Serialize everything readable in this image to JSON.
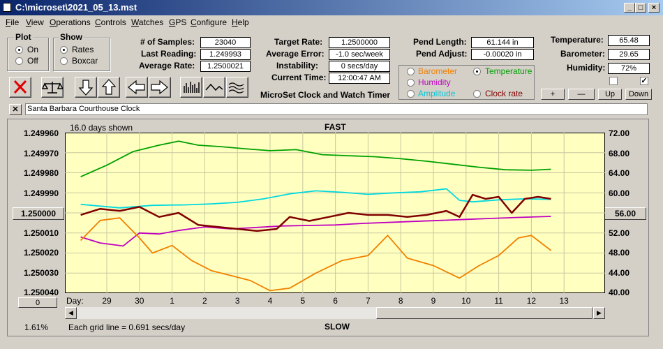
{
  "window": {
    "title": "C:\\microset\\2021_05_13.mst"
  },
  "menu": [
    {
      "label": "File",
      "ul": "F",
      "rest": "ile"
    },
    {
      "label": "View",
      "ul": "V",
      "rest": "iew"
    },
    {
      "label": "Operations",
      "ul": "O",
      "rest": "perations"
    },
    {
      "label": "Controls",
      "ul": "C",
      "rest": "ontrols"
    },
    {
      "label": "Watches",
      "ul": "W",
      "rest": "atches"
    },
    {
      "label": "GPS",
      "ul": "G",
      "rest": "PS"
    },
    {
      "label": "Configure",
      "ul": "C",
      "rest": "onfigure"
    },
    {
      "label": "Help",
      "ul": "H",
      "rest": "elp"
    }
  ],
  "plot_group": {
    "title": "Plot",
    "on": "On",
    "off": "Off",
    "selected": "On"
  },
  "show_group": {
    "title": "Show",
    "rates": "Rates",
    "boxcar": "Boxcar",
    "selected": "Rates"
  },
  "stats": {
    "samples_label": "# of Samples:",
    "samples": "23040",
    "last_label": "Last Reading:",
    "last": "1.249993",
    "avg_rate_label": "Average Rate:",
    "avg_rate": "1.2500021",
    "target_label": "Target Rate:",
    "target": "1.2500000",
    "avg_err_label": "Average Error:",
    "avg_err": "-1.0 sec/week",
    "instab_label": "Instability:",
    "instab": "0 secs/day",
    "time_label": "Current Time:",
    "time": "12:00:47 AM",
    "pend_len_label": "Pend Length:",
    "pend_len": "61.144 in",
    "pend_adj_label": "Pend Adjust:",
    "pend_adj": "-0.00020 in",
    "temp_label": "Temperature:",
    "temp": "65.48",
    "baro_label": "Barometer:",
    "baro": "29.65",
    "hum_label": "Humidity:",
    "hum": "72%"
  },
  "app_caption": "MicroSet Clock and Watch Timer",
  "overlay_options": [
    {
      "label": "Barometer",
      "color": "#f08000",
      "selected": false
    },
    {
      "label": "Temperature",
      "color": "#00a000",
      "selected": true
    },
    {
      "label": "Humidity",
      "color": "#c000c0",
      "selected": false
    },
    {
      "label": "Amplitude",
      "color": "#00c8d8",
      "selected": false
    },
    {
      "label": "Clock rate",
      "color": "#800000",
      "selected": false
    }
  ],
  "scale_buttons": {
    "plus": "+",
    "minus": "—",
    "up": "Up",
    "down": "Down"
  },
  "checkbox_right_checked": true,
  "clock_name": "Santa Barbara Courthouse Clock",
  "close_x": "✕",
  "graph": {
    "days_shown": "16.0 days shown",
    "fast": "FAST",
    "slow": "SLOW",
    "left_ticks": [
      "1.249960",
      "1.249970",
      "1.249980",
      "1.249990",
      "1.250000",
      "1.250010",
      "1.250020",
      "1.250030",
      "1.250040"
    ],
    "center_value_button": "1.250000",
    "right_ticks": [
      "72.00",
      "68.00",
      "64.00",
      "60.00",
      "56.00",
      "52.00",
      "48.00",
      "44.00",
      "40.00"
    ],
    "right_center_button": "56.00",
    "day_label": "Day:",
    "days": [
      "29",
      "30",
      "1",
      "2",
      "3",
      "4",
      "5",
      "6",
      "7",
      "8",
      "9",
      "10",
      "11",
      "12",
      "13"
    ],
    "zero_button": "0",
    "percent": "1.61%",
    "grid_note": "Each grid line = 0.691 secs/day"
  },
  "chart_data": {
    "type": "line",
    "x_unit": "day",
    "x_labels": [
      "29",
      "30",
      "1",
      "2",
      "3",
      "4",
      "5",
      "6",
      "7",
      "8",
      "9",
      "10",
      "11",
      "12",
      "13"
    ],
    "left_axis": {
      "ticks": [
        1.24996,
        1.24997,
        1.24998,
        1.24999,
        1.25,
        1.25001,
        1.25002,
        1.25003,
        1.25004
      ],
      "inverted": true
    },
    "right_axis": {
      "ticks": [
        72,
        68,
        64,
        60,
        56,
        52,
        48,
        44,
        40
      ]
    },
    "series": [
      {
        "name": "Temperature",
        "color": "#00a000",
        "axis": "right",
        "x": [
          27.2,
          28,
          28.8,
          29.6,
          30.2,
          30.8,
          31.5,
          32.2,
          33,
          33.8,
          34.6,
          35.4,
          36.2,
          37,
          37.8,
          38.6,
          39.4,
          40.2,
          41,
          41.6
        ],
        "y": [
          63.2,
          65.5,
          68.2,
          69.5,
          70.3,
          69.5,
          69.2,
          68.8,
          68.4,
          68.6,
          67.6,
          67.4,
          67.2,
          66.8,
          66.3,
          65.7,
          65.1,
          64.6,
          64.5,
          64.7
        ]
      },
      {
        "name": "Amplitude",
        "color": "#00d8e0",
        "axis": "right",
        "x": [
          27.2,
          28.4,
          29.4,
          30.4,
          31.2,
          32,
          32.8,
          33.6,
          34.4,
          35.2,
          36,
          36.8,
          37.6,
          38.4,
          38.8,
          39.2,
          40,
          40.8,
          41.6
        ],
        "y": [
          57.7,
          57.0,
          57.5,
          57.6,
          57.8,
          58.1,
          58.8,
          59.8,
          60.4,
          60.1,
          59.7,
          60.0,
          60.2,
          60.8,
          58.5,
          58.2,
          58.6,
          58.8,
          58.7
        ]
      },
      {
        "name": "Humidity",
        "color": "#c000c0",
        "axis": "right",
        "x": [
          27.2,
          27.8,
          28.5,
          29,
          29.6,
          30.2,
          31,
          31.8,
          32.6,
          33.4,
          34.2,
          35,
          35.8,
          36.6,
          37.4,
          38.2,
          39,
          39.8,
          40.6,
          41.6
        ],
        "y": [
          51.2,
          50.0,
          49.4,
          52.0,
          51.8,
          52.5,
          53.2,
          52.8,
          53.1,
          53.4,
          53.5,
          53.6,
          53.9,
          54.1,
          54.3,
          54.5,
          54.7,
          54.9,
          55.1,
          55.3
        ]
      },
      {
        "name": "Barometer",
        "color": "#f08000",
        "axis": "right",
        "x": [
          27.2,
          27.8,
          28.4,
          29,
          29.4,
          30,
          30.6,
          31.2,
          31.8,
          32.4,
          33,
          33.6,
          34.4,
          35.2,
          36,
          36.6,
          37.2,
          38,
          38.8,
          39.4,
          40,
          40.6,
          41,
          41.6
        ],
        "y": [
          50.5,
          54.5,
          55.0,
          51.0,
          48.0,
          49.5,
          46.5,
          44.5,
          43.5,
          42.5,
          40.5,
          41.0,
          44.0,
          46.5,
          47.5,
          51.5,
          47.0,
          45.5,
          43.0,
          45.5,
          47.5,
          51.0,
          51.5,
          48.5
        ]
      },
      {
        "name": "Clock rate",
        "color": "#800000",
        "axis": "left",
        "x": [
          27.2,
          27.8,
          28.4,
          29,
          29.6,
          30.2,
          30.8,
          31.4,
          32,
          32.6,
          33.2,
          33.6,
          34.2,
          34.8,
          35.4,
          36,
          36.6,
          37.2,
          37.8,
          38.4,
          38.8,
          39.2,
          39.6,
          40,
          40.4,
          40.8,
          41.2,
          41.6
        ],
        "y": [
          1.250001,
          1.249998,
          1.249999,
          1.249997,
          1.250002,
          1.25,
          1.250006,
          1.250007,
          1.250008,
          1.250009,
          1.250008,
          1.250002,
          1.250004,
          1.250002,
          1.25,
          1.250001,
          1.250001,
          1.250002,
          1.250001,
          1.249999,
          1.250002,
          1.249991,
          1.249993,
          1.249992,
          1.25,
          1.249993,
          1.249992,
          1.249993
        ]
      }
    ]
  }
}
